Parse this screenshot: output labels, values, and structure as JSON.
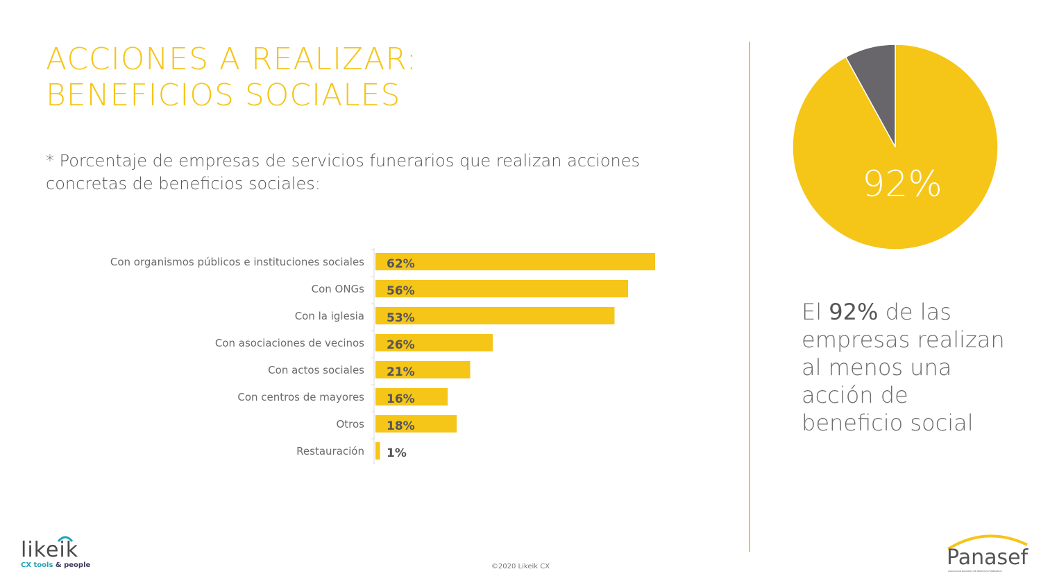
{
  "title": {
    "line1": "ACCIONES A REALIZAR:",
    "line2": "BENEFICIOS SOCIALES"
  },
  "subtitle": "* Porcentaje de empresas de servicios funerarios que realizan acciones concretas de beneficios sociales:",
  "statement": {
    "prefix": "El ",
    "highlight": "92%",
    "suffix": " de las empresas realizan al menos una acción de beneficio social"
  },
  "footer": "©2020 Likeik CX",
  "logos": {
    "likeik": {
      "word": "likeik",
      "tag_part1": "CX tools",
      "tag_part2": " & people"
    },
    "panasef": {
      "word": "Panasef",
      "tag": "ASOCIACIÓN NACIONAL DE SERVICIOS FUNERARIOS"
    }
  },
  "colors": {
    "accent": "#f5c518",
    "pie_rest": "#68666a",
    "text": "#555555"
  },
  "chart_data": [
    {
      "type": "bar",
      "orientation": "horizontal",
      "categories": [
        "Con organismos públicos e instituciones sociales",
        "Con ONGs",
        "Con la iglesia",
        "Con asociaciones de vecinos",
        "Con actos sociales",
        "Con centros de mayores",
        "Otros",
        "Restauración"
      ],
      "values": [
        62,
        56,
        53,
        26,
        21,
        16,
        18,
        1
      ],
      "value_labels": [
        "62%",
        "56%",
        "53%",
        "26%",
        "21%",
        "16%",
        "18%",
        "1%"
      ],
      "xlim": [
        0,
        100
      ],
      "grid": false,
      "legend": "none"
    },
    {
      "type": "pie",
      "slices": [
        {
          "value": 92,
          "color": "#f5c518"
        },
        {
          "value": 8,
          "color": "#68666a"
        }
      ],
      "label": "92%"
    }
  ]
}
